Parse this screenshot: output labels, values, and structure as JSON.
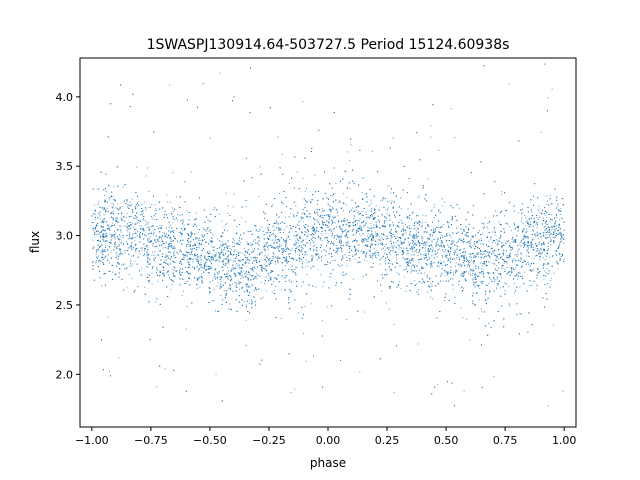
{
  "chart_data": {
    "type": "scatter",
    "title": "1SWASPJ130914.64-503727.5 Period 15124.60938s",
    "xlabel": "phase",
    "ylabel": "flux",
    "xlim": [
      -1.05,
      1.05
    ],
    "ylim": [
      1.62,
      4.28
    ],
    "xticks": [
      -1.0,
      -0.75,
      -0.5,
      -0.25,
      0.0,
      0.25,
      0.5,
      0.75,
      1.0
    ],
    "xtick_labels": [
      "−1.00",
      "−0.75",
      "−0.50",
      "−0.25",
      "0.00",
      "0.25",
      "0.50",
      "0.75",
      "1.00"
    ],
    "yticks": [
      2.0,
      2.5,
      3.0,
      3.5,
      4.0
    ],
    "ytick_labels": [
      "2.0",
      "2.5",
      "3.0",
      "3.5",
      "4.0"
    ],
    "grid": false,
    "legend": "none",
    "marker_color": "#1f77b4",
    "series": [
      {
        "phase": [
          -1.0,
          -0.9,
          -0.8,
          -0.7,
          -0.6,
          -0.5,
          -0.4,
          -0.35,
          -0.3,
          -0.2,
          -0.1,
          0.0,
          0.1,
          0.2,
          0.3,
          0.4,
          0.5,
          0.6,
          0.65,
          0.7,
          0.8,
          0.9,
          1.0
        ],
        "flux_center": [
          3.02,
          3.02,
          2.99,
          2.95,
          2.9,
          2.83,
          2.8,
          2.78,
          2.82,
          2.9,
          2.97,
          3.02,
          3.01,
          3.0,
          2.97,
          2.93,
          2.88,
          2.82,
          2.79,
          2.82,
          2.9,
          2.97,
          3.02
        ],
        "flux_core_spread": 0.15,
        "flux_range": [
          1.75,
          4.25
        ]
      }
    ]
  }
}
